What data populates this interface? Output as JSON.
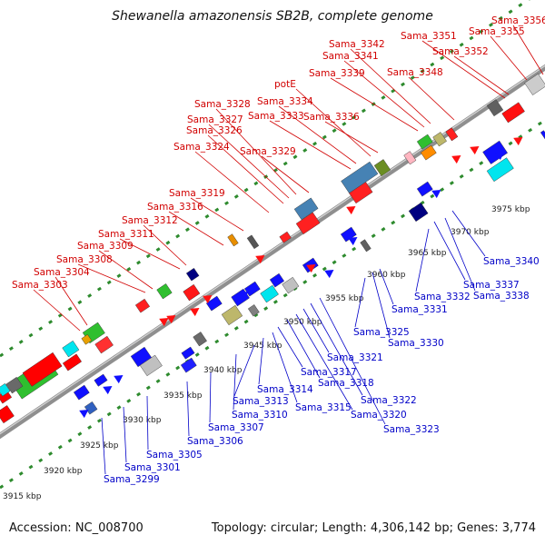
{
  "title": "Shewanella amazonensis SB2B, complete genome",
  "footer": {
    "accession": "Accession: NC_008700",
    "summary": "Topology: circular; Length: 4,306,142 bp; Genes: 3,774"
  },
  "colors": {
    "top_label": "#d10000",
    "bottom_label": "#0000c8",
    "backbone": "#8f8f8f",
    "grid_dots": "#2e8b2e"
  },
  "ticks": [
    "3915 kbp",
    "3920 kbp",
    "3925 kbp",
    "3930 kbp",
    "3935 kbp",
    "3940 kbp",
    "3945 kbp",
    "3950 kbp",
    "3955 kbp",
    "3960 kbp",
    "3965 kbp",
    "3970 kbp",
    "3975 kbp"
  ],
  "top_labels": [
    "Sama_3303",
    "Sama_3304",
    "Sama_3308",
    "Sama_3309",
    "Sama_3311",
    "Sama_3312",
    "Sama_3316",
    "Sama_3319",
    "Sama_3324",
    "Sama_3326",
    "Sama_3327",
    "Sama_3328",
    "Sama_3329",
    "Sama_3333",
    "Sama_3334",
    "potE",
    "Sama_3336",
    "Sama_3339",
    "Sama_3341",
    "Sama_3342",
    "Sama_3348",
    "Sama_3351",
    "Sama_3352",
    "Sama_3355",
    "Sama_3356"
  ],
  "bottom_labels": [
    "Sama_3299",
    "Sama_3301",
    "Sama_3305",
    "Sama_3306",
    "Sama_3307",
    "Sama_3310",
    "Sama_3313",
    "Sama_3314",
    "Sama_3315",
    "Sama_3317",
    "Sama_3318",
    "Sama_3320",
    "Sama_3321",
    "Sama_3322",
    "Sama_3323",
    "Sama_3325",
    "Sama_3330",
    "Sama_3331",
    "Sama_3332",
    "Sama_3337",
    "Sama_3338",
    "Sama_3340"
  ]
}
